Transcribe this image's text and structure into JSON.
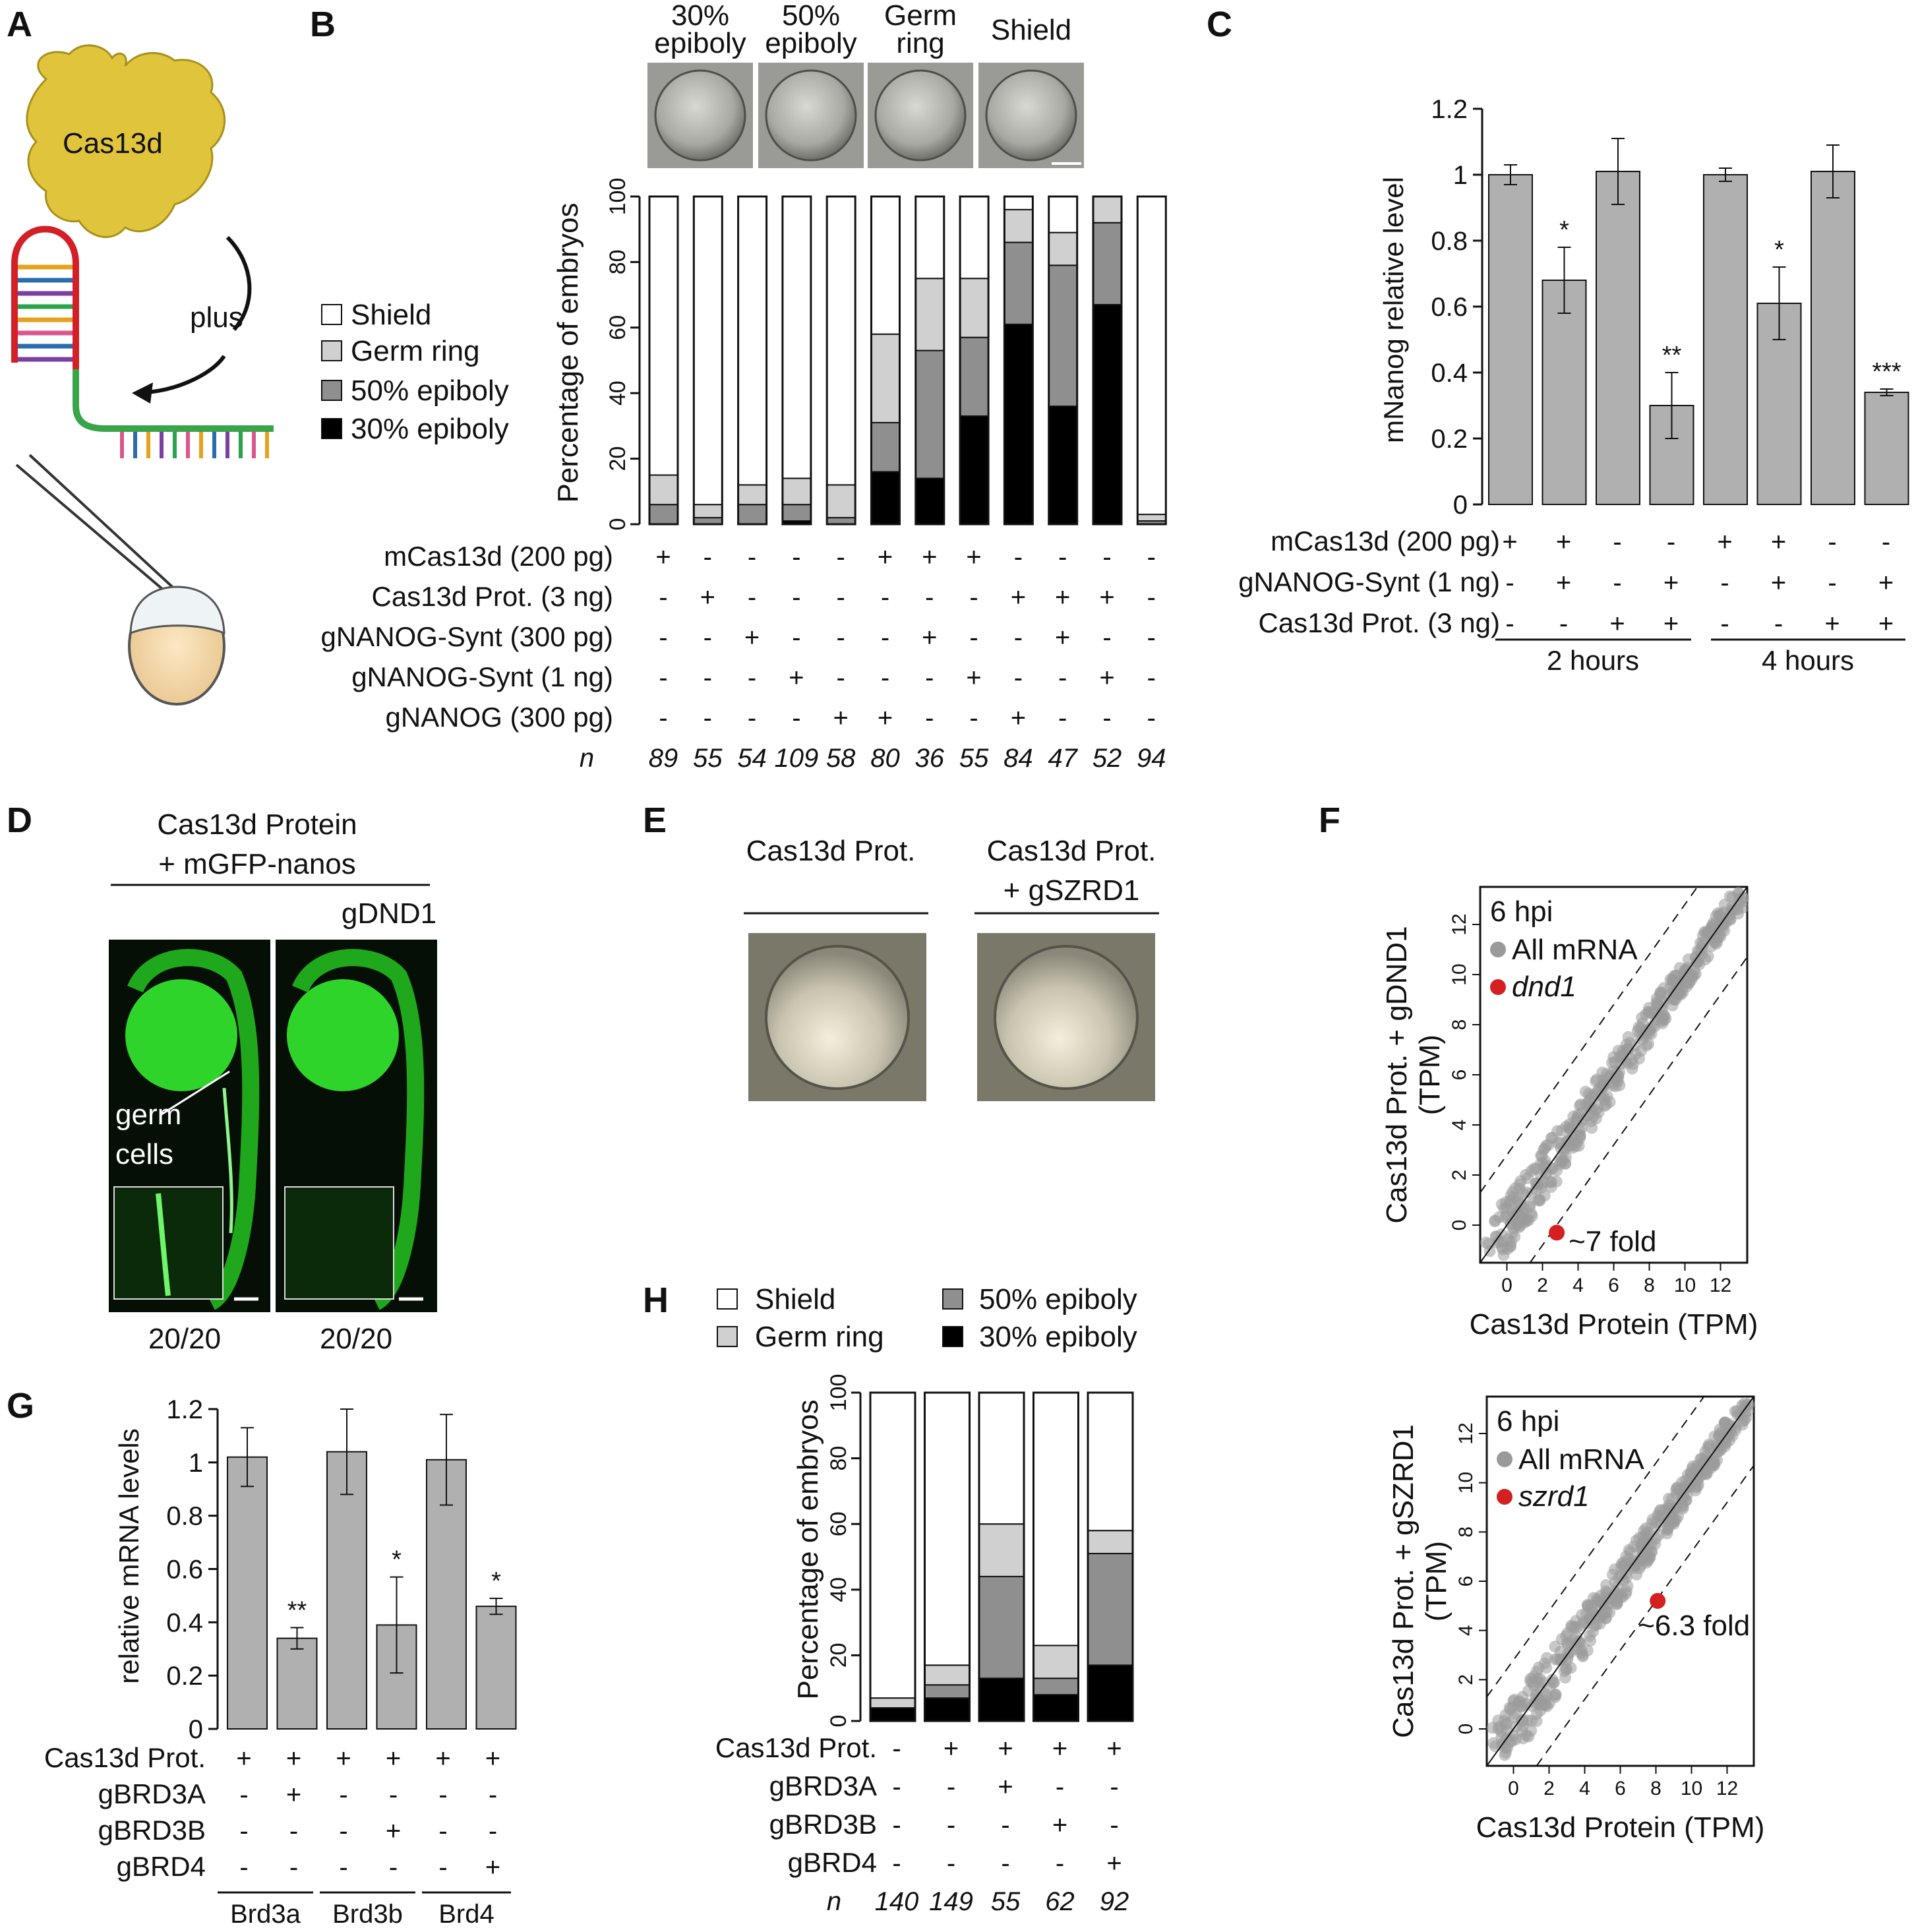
{
  "panels": {
    "A": {
      "label": "A",
      "protein": "Cas13d",
      "arrow_text": "plus"
    },
    "B": {
      "label": "B",
      "stage_images": [
        {
          "line1": "30%",
          "line2": "epiboly"
        },
        {
          "line1": "50%",
          "line2": "epiboly"
        },
        {
          "line1": "Germ",
          "line2": "ring"
        },
        {
          "line1": "Shield",
          "line2": ""
        }
      ],
      "legend": [
        "Shield",
        "Germ ring",
        "50% epiboly",
        "30% epiboly"
      ],
      "ylabel": "Percentage of embryos",
      "yticks": [
        "0",
        "20",
        "40",
        "60",
        "80",
        "100"
      ],
      "rows": [
        {
          "label": "mCas13d (200 pg)",
          "marks": [
            "+",
            "-",
            "-",
            "-",
            "-",
            "+",
            "+",
            "+",
            "-",
            "-",
            "-",
            "-"
          ]
        },
        {
          "label": "Cas13d Prot. (3 ng)",
          "marks": [
            "-",
            "+",
            "-",
            "-",
            "-",
            "-",
            "-",
            "-",
            "+",
            "+",
            "+",
            "-"
          ]
        },
        {
          "label": "gNANOG-Synt (300 pg)",
          "marks": [
            "-",
            "-",
            "+",
            "-",
            "-",
            "-",
            "+",
            "-",
            "-",
            "+",
            "-",
            "-"
          ]
        },
        {
          "label": "gNANOG-Synt (1 ng)",
          "marks": [
            "-",
            "-",
            "-",
            "+",
            "-",
            "-",
            "-",
            "+",
            "-",
            "-",
            "+",
            "-"
          ]
        },
        {
          "label": "gNANOG (300 pg)",
          "marks": [
            "-",
            "-",
            "-",
            "-",
            "+",
            "+",
            "-",
            "-",
            "+",
            "-",
            "-",
            "-"
          ]
        }
      ],
      "n_label": "n",
      "n_values": [
        "89",
        "55",
        "54",
        "109",
        "58",
        "80",
        "36",
        "55",
        "84",
        "47",
        "52",
        "94"
      ]
    },
    "C": {
      "label": "C",
      "ylabel": "mNanog relative level",
      "yticks": [
        "0",
        "0.2",
        "0.4",
        "0.6",
        "0.8",
        "1",
        "1.2"
      ],
      "rows": [
        {
          "label": "mCas13d (200 pg)",
          "marks": [
            "+",
            "+",
            "-",
            "-",
            "+",
            "+",
            "-",
            "-"
          ]
        },
        {
          "label": "gNANOG-Synt (1 ng)",
          "marks": [
            "-",
            "+",
            "-",
            "+",
            "-",
            "+",
            "-",
            "+"
          ]
        },
        {
          "label": "Cas13d Prot. (3 ng)",
          "marks": [
            "-",
            "-",
            "+",
            "+",
            "-",
            "-",
            "+",
            "+"
          ]
        }
      ],
      "groups": [
        "2 hours",
        "4 hours"
      ]
    },
    "D": {
      "label": "D",
      "title_line1": "Cas13d Protein",
      "title_line2": "+ mGFP-nanos",
      "guide": "gDND1",
      "annotation_line1": "germ",
      "annotation_line2": "cells",
      "counts": [
        "20/20",
        "20/20"
      ]
    },
    "E": {
      "label": "E",
      "left_title": "Cas13d Prot.",
      "right_title_line1": "Cas13d Prot.",
      "right_title_line2": "+ gSZRD1"
    },
    "F": {
      "label": "F",
      "plots": [
        {
          "ylabel_line1": "Cas13d Prot. + gDND1",
          "ylabel_line2": "(TPM)",
          "xlabel": "Cas13d Protein (TPM)",
          "legend_title": "6 hpi",
          "legend_all": "All mRNA",
          "legend_gene": "dnd1",
          "annotation": "~7 fold"
        },
        {
          "ylabel_line1": "Cas13d Prot. + gSZRD1",
          "ylabel_line2": "(TPM)",
          "xlabel": "Cas13d Protein (TPM)",
          "legend_title": "6 hpi",
          "legend_all": "All mRNA",
          "legend_gene": "szrd1",
          "annotation": "~6.3 fold"
        }
      ],
      "ticks": [
        "0",
        "2",
        "4",
        "6",
        "8",
        "10",
        "12"
      ]
    },
    "G": {
      "label": "G",
      "ylabel": "relative mRNA levels",
      "yticks": [
        "0",
        "0.2",
        "0.4",
        "0.6",
        "0.8",
        "1",
        "1.2"
      ],
      "rows": [
        {
          "label": "Cas13d Prot.",
          "marks": [
            "+",
            "+",
            "+",
            "+",
            "+",
            "+"
          ]
        },
        {
          "label": "gBRD3A",
          "marks": [
            "-",
            "+",
            "-",
            "-",
            "-",
            "-"
          ]
        },
        {
          "label": "gBRD3B",
          "marks": [
            "-",
            "-",
            "-",
            "+",
            "-",
            "-"
          ]
        },
        {
          "label": "gBRD4",
          "marks": [
            "-",
            "-",
            "-",
            "-",
            "-",
            "+"
          ]
        }
      ],
      "groups": [
        "Brd3a",
        "Brd3b",
        "Brd4"
      ]
    },
    "H": {
      "label": "H",
      "legend": [
        "Shield",
        "Germ ring",
        "50% epiboly",
        "30% epiboly"
      ],
      "ylabel": "Percentage of embryos",
      "yticks": [
        "0",
        "20",
        "40",
        "60",
        "80",
        "100"
      ],
      "rows": [
        {
          "label": "Cas13d Prot.",
          "marks": [
            "-",
            "+",
            "+",
            "+",
            "+"
          ]
        },
        {
          "label": "gBRD3A",
          "marks": [
            "-",
            "-",
            "+",
            "-",
            "-"
          ]
        },
        {
          "label": "gBRD3B",
          "marks": [
            "-",
            "-",
            "-",
            "+",
            "-"
          ]
        },
        {
          "label": "gBRD4",
          "marks": [
            "-",
            "-",
            "-",
            "-",
            "+"
          ]
        }
      ],
      "n_label": "n",
      "n_values": [
        "140",
        "149",
        "55",
        "62",
        "92"
      ]
    }
  },
  "colors": {
    "shield": "#ffffff",
    "germ_ring": "#d0d0d0",
    "epiboly50": "#8f8f8f",
    "epiboly30": "#000000",
    "bar_grey": "#b0b0b0",
    "highlight": "#d42020",
    "gfp": "#27d11f"
  },
  "chart_data": [
    {
      "panel": "B",
      "type": "bar",
      "stacked": true,
      "ylabel": "Percentage of embryos",
      "ylim": [
        0,
        100
      ],
      "series": [
        {
          "name": "30% epiboly",
          "values": [
            0,
            0,
            0,
            1,
            0,
            16,
            14,
            33,
            61,
            36,
            67,
            0
          ]
        },
        {
          "name": "50% epiboly",
          "values": [
            6,
            2,
            6,
            5,
            2,
            15,
            39,
            24,
            25,
            43,
            25,
            1
          ]
        },
        {
          "name": "Germ ring",
          "values": [
            9,
            4,
            6,
            8,
            10,
            27,
            22,
            18,
            10,
            10,
            8,
            2
          ]
        },
        {
          "name": "Shield",
          "values": [
            85,
            94,
            88,
            86,
            88,
            42,
            25,
            25,
            4,
            11,
            0,
            97
          ]
        }
      ]
    },
    {
      "panel": "C",
      "type": "bar",
      "ylabel": "mNanog relative level",
      "ylim": [
        0,
        1.2
      ],
      "values": [
        1.0,
        0.68,
        1.01,
        0.3,
        1.0,
        0.61,
        1.01,
        0.34
      ],
      "errors": [
        0.03,
        0.1,
        0.1,
        0.1,
        0.02,
        0.11,
        0.08,
        0.01
      ],
      "significance": [
        "",
        "*",
        "",
        "**",
        "",
        "*",
        "",
        "***"
      ]
    },
    {
      "panel": "F1",
      "type": "scatter",
      "xlabel": "Cas13d Protein (TPM)",
      "ylabel": "Cas13d Prot. + gDND1 (TPM)",
      "xlim": [
        -1.5,
        13.5
      ],
      "ylim": [
        -1.5,
        13.5
      ],
      "series": [
        {
          "name": "dnd1",
          "x": [
            2.8
          ],
          "y": [
            -0.3
          ]
        }
      ]
    },
    {
      "panel": "F2",
      "type": "scatter",
      "xlabel": "Cas13d Protein (TPM)",
      "ylabel": "Cas13d Prot. + gSZRD1 (TPM)",
      "xlim": [
        -1.5,
        13.5
      ],
      "ylim": [
        -1.5,
        13.5
      ],
      "series": [
        {
          "name": "szrd1",
          "x": [
            8.1
          ],
          "y": [
            5.2
          ]
        }
      ]
    },
    {
      "panel": "G",
      "type": "bar",
      "ylabel": "relative mRNA levels",
      "ylim": [
        0,
        1.2
      ],
      "values": [
        1.02,
        0.34,
        1.04,
        0.39,
        1.01,
        0.46
      ],
      "errors": [
        0.11,
        0.04,
        0.16,
        0.18,
        0.17,
        0.03
      ],
      "significance": [
        "",
        "**",
        "",
        "*",
        "",
        "*"
      ]
    },
    {
      "panel": "H",
      "type": "bar",
      "stacked": true,
      "ylabel": "Percentage of embryos",
      "ylim": [
        0,
        100
      ],
      "series": [
        {
          "name": "30% epiboly",
          "values": [
            4,
            7,
            13,
            8,
            17
          ]
        },
        {
          "name": "50% epiboly",
          "values": [
            0,
            4,
            31,
            5,
            34
          ]
        },
        {
          "name": "Germ ring",
          "values": [
            3,
            6,
            16,
            10,
            7
          ]
        },
        {
          "name": "Shield",
          "values": [
            93,
            83,
            40,
            77,
            42
          ]
        }
      ]
    }
  ]
}
